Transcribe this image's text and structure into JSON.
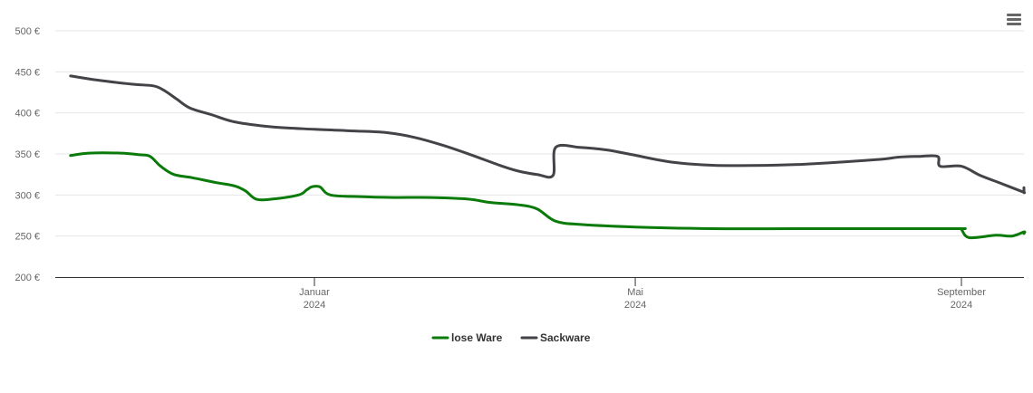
{
  "chart_data": {
    "type": "line",
    "x_axis": {
      "type": "date",
      "ticks": [
        {
          "date": "2024-01-01",
          "label_month": "Januar",
          "label_year": "2024"
        },
        {
          "date": "2024-05-01",
          "label_month": "Mai",
          "label_year": "2024"
        },
        {
          "date": "2024-09-01",
          "label_month": "September",
          "label_year": "2024"
        }
      ]
    },
    "y_axis": {
      "ylim": [
        200,
        500
      ],
      "ticks": [
        200,
        250,
        300,
        350,
        400,
        450,
        500
      ],
      "tick_labels": [
        "200 €",
        "250 €",
        "300 €",
        "350 €",
        "400 €",
        "450 €",
        "500 €"
      ]
    },
    "grid": "horizontal",
    "legend_position": "bottom-center",
    "series": [
      {
        "name": "lose Ware",
        "color": "#0a7a0a",
        "points": [
          [
            "2023-10-01",
            348
          ],
          [
            "2023-10-08",
            351
          ],
          [
            "2023-10-20",
            351
          ],
          [
            "2023-10-27",
            349
          ],
          [
            "2023-10-31",
            347
          ],
          [
            "2023-11-04",
            335
          ],
          [
            "2023-11-09",
            325
          ],
          [
            "2023-11-16",
            321
          ],
          [
            "2023-11-25",
            315
          ],
          [
            "2023-12-02",
            311
          ],
          [
            "2023-12-06",
            305
          ],
          [
            "2023-12-10",
            295
          ],
          [
            "2023-12-16",
            295
          ],
          [
            "2023-12-26",
            300
          ],
          [
            "2023-12-29",
            306
          ],
          [
            "2023-12-31",
            310
          ],
          [
            "2024-01-03",
            310
          ],
          [
            "2024-01-07",
            300
          ],
          [
            "2024-01-18",
            298
          ],
          [
            "2024-01-31",
            297
          ],
          [
            "2024-02-14",
            297
          ],
          [
            "2024-02-28",
            295
          ],
          [
            "2024-03-07",
            291
          ],
          [
            "2024-03-18",
            288
          ],
          [
            "2024-03-25",
            283
          ],
          [
            "2024-04-01",
            268
          ],
          [
            "2024-04-11",
            264
          ],
          [
            "2024-05-01",
            261
          ],
          [
            "2024-05-30",
            259
          ],
          [
            "2024-06-30",
            259
          ],
          [
            "2024-07-31",
            259
          ],
          [
            "2024-08-31",
            259
          ],
          [
            "2024-09-01",
            258
          ],
          [
            "2024-09-04",
            248
          ],
          [
            "2024-09-14",
            251
          ],
          [
            "2024-09-20",
            250
          ],
          [
            "2024-09-28",
            255
          ],
          [
            "2024-10-01",
            253
          ]
        ]
      },
      {
        "name": "Sackware",
        "color": "#434348",
        "points": [
          [
            "2023-10-01",
            445
          ],
          [
            "2023-10-11",
            440
          ],
          [
            "2023-10-24",
            435
          ],
          [
            "2023-11-01",
            433
          ],
          [
            "2023-11-05",
            428
          ],
          [
            "2023-11-10",
            417
          ],
          [
            "2023-11-15",
            406
          ],
          [
            "2023-11-23",
            398
          ],
          [
            "2023-12-02",
            389
          ],
          [
            "2023-12-16",
            383
          ],
          [
            "2024-01-01",
            380
          ],
          [
            "2024-01-16",
            378
          ],
          [
            "2024-01-28",
            376
          ],
          [
            "2024-02-08",
            370
          ],
          [
            "2024-02-19",
            360
          ],
          [
            "2024-02-29",
            349
          ],
          [
            "2024-03-11",
            336
          ],
          [
            "2024-03-18",
            329
          ],
          [
            "2024-03-25",
            325
          ],
          [
            "2024-03-31",
            324
          ],
          [
            "2024-04-01",
            358
          ],
          [
            "2024-04-10",
            358
          ],
          [
            "2024-04-20",
            355
          ],
          [
            "2024-04-30",
            349
          ],
          [
            "2024-05-15",
            340
          ],
          [
            "2024-06-01",
            336
          ],
          [
            "2024-06-30",
            337
          ],
          [
            "2024-07-31",
            343
          ],
          [
            "2024-08-08",
            346
          ],
          [
            "2024-08-16",
            347
          ],
          [
            "2024-08-23",
            347
          ],
          [
            "2024-08-24",
            335
          ],
          [
            "2024-09-01",
            335
          ],
          [
            "2024-09-08",
            324
          ],
          [
            "2024-09-16",
            314
          ],
          [
            "2024-09-24",
            304
          ],
          [
            "2024-10-01",
            303
          ],
          [
            "2024-10-05",
            306
          ],
          [
            "2024-10-09",
            309
          ]
        ]
      }
    ]
  },
  "menu": {
    "icon": "hamburger-menu-icon"
  }
}
